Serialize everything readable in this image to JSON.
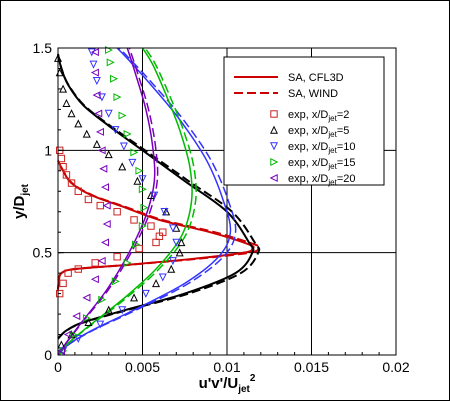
{
  "chart_data": {
    "type": "line",
    "xlabel": "u'v'/U_jet^2",
    "ylabel": "y/D_jet",
    "xlim": [
      0,
      0.02
    ],
    "ylim": [
      0,
      1.5
    ],
    "xticks": [
      0,
      0.005,
      0.01,
      0.015,
      0.02
    ],
    "xtick_labels": [
      "0",
      "0.005",
      "0.01",
      "0.015",
      "0.02"
    ],
    "yticks": [
      0,
      0.5,
      1,
      1.5
    ],
    "ytick_labels": [
      "0",
      "0.5",
      "1",
      "1.5"
    ],
    "grid": true,
    "legend_position": "top-right",
    "legend": [
      {
        "text": "SA, CFL3D",
        "kind": "line",
        "style": "solid",
        "color": "#cc0000"
      },
      {
        "text": "SA, WIND",
        "kind": "line",
        "style": "dashed",
        "color": "#cc0000"
      },
      {
        "text": "exp, x/D_jet=2",
        "kind": "marker",
        "marker": "square",
        "color": "#cc2222"
      },
      {
        "text": "exp, x/D_jet=5",
        "kind": "marker",
        "marker": "triangle-up",
        "color": "#000000"
      },
      {
        "text": "exp, x/D_jet=10",
        "kind": "marker",
        "marker": "triangle-down",
        "color": "#3333ff"
      },
      {
        "text": "exp, x/D_jet=15",
        "kind": "marker",
        "marker": "triangle-right",
        "color": "#00bb00"
      },
      {
        "text": "exp, x/D_jet=20",
        "kind": "marker",
        "marker": "triangle-left",
        "color": "#7700bb"
      }
    ],
    "series": [
      {
        "station": "x/D_jet=2",
        "color": "#cc0000",
        "width": 2,
        "x": [
          0,
          5e-05,
          0.0002,
          0.001,
          0.004,
          0.008,
          0.011,
          0.0115,
          0.0113,
          0.009,
          0.006,
          0.004,
          0.002,
          0.0008,
          0.0003,
          0
        ],
        "y": [
          0.32,
          0.36,
          0.4,
          0.42,
          0.44,
          0.47,
          0.5,
          0.52,
          0.54,
          0.6,
          0.66,
          0.72,
          0.78,
          0.84,
          0.9,
          0.95
        ]
      },
      {
        "station": "x/D_jet=5",
        "color": "#000000",
        "width": 2,
        "x": [
          0,
          0.0005,
          0.0015,
          0.004,
          0.0075,
          0.0105,
          0.0115,
          0.0113,
          0.01,
          0.0075,
          0.005,
          0.003,
          0.0015,
          0.0006,
          0.0002,
          0
        ],
        "y": [
          0.08,
          0.12,
          0.16,
          0.22,
          0.3,
          0.4,
          0.5,
          0.55,
          0.7,
          0.85,
          1.0,
          1.12,
          1.22,
          1.32,
          1.4,
          1.47
        ]
      },
      {
        "station": "x/D_jet=10",
        "color": "#3333ff",
        "width": 1.5,
        "x": [
          0,
          0.0006,
          0.002,
          0.0045,
          0.0075,
          0.0095,
          0.0102,
          0.0098,
          0.0088,
          0.0072,
          0.0055,
          0.0042,
          0.0035
        ],
        "y": [
          0.0,
          0.05,
          0.12,
          0.22,
          0.35,
          0.48,
          0.6,
          0.75,
          0.95,
          1.15,
          1.32,
          1.44,
          1.5
        ]
      },
      {
        "station": "x/D_jet=15",
        "color": "#00bb00",
        "width": 1.5,
        "x": [
          0,
          0.0005,
          0.0018,
          0.0038,
          0.0058,
          0.0073,
          0.0079,
          0.0078,
          0.0072,
          0.0064,
          0.0056,
          0.005
        ],
        "y": [
          0.0,
          0.05,
          0.14,
          0.27,
          0.42,
          0.58,
          0.75,
          0.92,
          1.1,
          1.27,
          1.42,
          1.5
        ]
      },
      {
        "station": "x/D_jet=20",
        "color": "#7700bb",
        "width": 1.5,
        "x": [
          0,
          0.0004,
          0.0014,
          0.0029,
          0.0042,
          0.0052,
          0.0057,
          0.0056,
          0.0052,
          0.0046,
          0.0041
        ],
        "y": [
          0.0,
          0.05,
          0.16,
          0.32,
          0.5,
          0.68,
          0.85,
          1.02,
          1.2,
          1.37,
          1.5
        ]
      }
    ],
    "experiments": [
      {
        "station": "x/D_jet=2",
        "marker": "square",
        "color": "#cc2222",
        "x": [
          0.0001,
          0.0003,
          0.0006,
          0.0012,
          0.0022,
          0.0035,
          0.0048,
          0.0058,
          0.006,
          0.0062,
          0.0055,
          0.0045,
          0.0035,
          0.0025,
          0.0018,
          0.0012,
          0.0008,
          0.0005,
          0.0003,
          0.0002,
          0.0001
        ],
        "y": [
          0.3,
          0.35,
          0.4,
          0.42,
          0.45,
          0.48,
          0.52,
          0.55,
          0.58,
          0.6,
          0.63,
          0.66,
          0.7,
          0.73,
          0.76,
          0.8,
          0.84,
          0.88,
          0.92,
          0.96,
          1.0
        ]
      },
      {
        "station": "x/D_jet=5",
        "marker": "triangle-up",
        "color": "#000000",
        "x": [
          0.0002,
          0.0008,
          0.0018,
          0.003,
          0.0045,
          0.0058,
          0.0067,
          0.0072,
          0.0073,
          0.007,
          0.0064,
          0.0055,
          0.0047,
          0.0038,
          0.003,
          0.0023,
          0.0017,
          0.0012,
          0.0008,
          0.0005,
          0.0003,
          0.0001,
          0.0
        ],
        "y": [
          0.05,
          0.1,
          0.16,
          0.22,
          0.28,
          0.35,
          0.42,
          0.5,
          0.55,
          0.62,
          0.7,
          0.78,
          0.85,
          0.92,
          0.98,
          1.03,
          1.08,
          1.13,
          1.18,
          1.23,
          1.3,
          1.38,
          1.45
        ]
      },
      {
        "station": "x/D_jet=10",
        "marker": "triangle-down",
        "color": "#3333ff",
        "x": [
          0.0003,
          0.0012,
          0.0025,
          0.0038,
          0.0052,
          0.0062,
          0.0068,
          0.007,
          0.0068,
          0.0063,
          0.0057,
          0.005,
          0.0044,
          0.0039,
          0.0034,
          0.003,
          0.0026,
          0.0023,
          0.0021,
          0.002
        ],
        "y": [
          0.02,
          0.08,
          0.15,
          0.22,
          0.3,
          0.38,
          0.46,
          0.55,
          0.62,
          0.7,
          0.78,
          0.86,
          0.94,
          1.02,
          1.1,
          1.18,
          1.26,
          1.34,
          1.42,
          1.48
        ]
      },
      {
        "station": "x/D_jet=15",
        "marker": "triangle-right",
        "color": "#00bb00",
        "x": [
          0.0003,
          0.0009,
          0.0017,
          0.0026,
          0.0034,
          0.0041,
          0.0046,
          0.005,
          0.0051,
          0.005,
          0.0048,
          0.0045,
          0.0041,
          0.0038,
          0.0035,
          0.0033,
          0.0031,
          0.003
        ],
        "y": [
          0.02,
          0.1,
          0.18,
          0.27,
          0.36,
          0.45,
          0.54,
          0.63,
          0.72,
          0.81,
          0.9,
          0.99,
          1.08,
          1.17,
          1.26,
          1.35,
          1.43,
          1.49
        ]
      },
      {
        "station": "x/D_jet=20",
        "marker": "triangle-left",
        "color": "#7700bb",
        "x": [
          0.0002,
          0.0006,
          0.0011,
          0.0017,
          0.0022,
          0.0026,
          0.0028,
          0.0029,
          0.0029,
          0.0028,
          0.0027,
          0.0026,
          0.0025,
          0.0024,
          0.0023,
          0.0022,
          0.0022
        ],
        "y": [
          0.02,
          0.1,
          0.19,
          0.28,
          0.37,
          0.46,
          0.55,
          0.64,
          0.73,
          0.82,
          0.91,
          1.0,
          1.09,
          1.18,
          1.27,
          1.38,
          1.48
        ]
      }
    ]
  }
}
